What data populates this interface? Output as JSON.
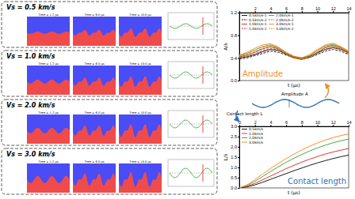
{
  "panels": [
    {
      "label": "Vs = 0.5 km/s",
      "times": [
        "Time = 1.2 μs",
        "Time = 6.0 μs",
        "Time = 10.0 μs"
      ]
    },
    {
      "label": "Vs = 1.0 km/s",
      "times": [
        "Time = 1.2 μs",
        "Time = 6.0 μs",
        "Time = 10.0 μs"
      ]
    },
    {
      "label": "Vs = 2.0 km/s",
      "times": [
        "Time = 1.2 μs",
        "Time = 6.0 μs",
        "Time = 10.0 μs"
      ]
    },
    {
      "label": "Vs = 3.0 km/s",
      "times": [
        "Time = 1.2 μs",
        "Time = 6.0 μs",
        "Time = 10.0 μs"
      ]
    }
  ],
  "annotations": {
    "amplitude": "Amplitude A",
    "contact_length": "Contact length L"
  },
  "chart_data": [
    {
      "type": "line",
      "title": "Amplitude",
      "x_label": "t (μs)",
      "y_label": "A/λ",
      "x": [
        0,
        1,
        2,
        3,
        4,
        5,
        6,
        7,
        8,
        9,
        10,
        11,
        12,
        13,
        14
      ],
      "xlim": [
        0,
        14
      ],
      "xticks": [
        2,
        4,
        6,
        8,
        10,
        12,
        14
      ],
      "ylim": [
        0,
        1.2
      ],
      "yticks": [
        {
          "value": 0,
          "label": "0.0"
        },
        0.4,
        0.8,
        1.2
      ],
      "legend": "upper left",
      "series": [
        {
          "name": "0.5km/s-1",
          "color": "#000000",
          "line_style": "solid",
          "values": [
            0.4,
            0.42,
            0.46,
            0.51,
            0.55,
            0.53,
            0.47,
            0.42,
            0.4,
            0.43,
            0.49,
            0.55,
            0.58,
            0.55,
            0.49
          ]
        },
        {
          "name": "0.5km/s-2",
          "color": "#000000",
          "line_style": "dashed",
          "values": [
            0.38,
            0.4,
            0.44,
            0.48,
            0.52,
            0.5,
            0.45,
            0.4,
            0.38,
            0.41,
            0.46,
            0.52,
            0.55,
            0.52,
            0.46
          ]
        },
        {
          "name": "1.0km/s-1",
          "color": "#e41a1c",
          "line_style": "solid",
          "values": [
            0.42,
            0.45,
            0.5,
            0.56,
            0.6,
            0.56,
            0.48,
            0.41,
            0.38,
            0.42,
            0.5,
            0.58,
            0.62,
            0.57,
            0.5
          ]
        },
        {
          "name": "1.0km/s-2",
          "color": "#e41a1c",
          "line_style": "dashed",
          "values": [
            0.4,
            0.43,
            0.47,
            0.53,
            0.57,
            0.54,
            0.46,
            0.4,
            0.37,
            0.4,
            0.48,
            0.55,
            0.59,
            0.55,
            0.48
          ]
        },
        {
          "name": "2.0km/s-1",
          "color": "#2ca02c",
          "line_style": "solid",
          "values": [
            0.44,
            0.48,
            0.54,
            0.6,
            0.63,
            0.58,
            0.49,
            0.42,
            0.39,
            0.44,
            0.53,
            0.61,
            0.64,
            0.59,
            0.51
          ]
        },
        {
          "name": "2.0km/s-2",
          "color": "#2ca02c",
          "line_style": "dashed",
          "values": [
            0.41,
            0.45,
            0.51,
            0.57,
            0.6,
            0.55,
            0.47,
            0.4,
            0.37,
            0.42,
            0.5,
            0.58,
            0.61,
            0.56,
            0.49
          ]
        },
        {
          "name": "3.0km/s-1",
          "color": "#ff7f0e",
          "line_style": "solid",
          "values": [
            0.45,
            0.5,
            0.57,
            0.63,
            0.65,
            0.59,
            0.5,
            0.43,
            0.4,
            0.46,
            0.55,
            0.63,
            0.66,
            0.6,
            0.52
          ]
        },
        {
          "name": "3.0km/s-2",
          "color": "#ff7f0e",
          "line_style": "dashed",
          "values": [
            0.43,
            0.47,
            0.54,
            0.6,
            0.62,
            0.57,
            0.48,
            0.41,
            0.38,
            0.44,
            0.53,
            0.6,
            0.63,
            0.58,
            0.5
          ]
        }
      ]
    },
    {
      "type": "line",
      "title": "Contact length",
      "x_label": "t (μs)",
      "y_label": "L/λ",
      "x": [
        0,
        1,
        2,
        3,
        4,
        5,
        6,
        7,
        8,
        9,
        10,
        11,
        12,
        13,
        14
      ],
      "xlim": [
        0,
        14
      ],
      "xticks": [
        0,
        2,
        4,
        6,
        8,
        10,
        12,
        14
      ],
      "ylim": [
        0,
        3
      ],
      "yticks": [
        {
          "value": 0,
          "label": "0.0"
        },
        0.5,
        {
          "value": 1,
          "label": "1.0"
        },
        1.5,
        {
          "value": 2,
          "label": "2.0"
        },
        2.5,
        {
          "value": 3,
          "label": "3.0"
        }
      ],
      "legend": "upper left",
      "series": [
        {
          "name": "0.5km/s",
          "color": "#000000",
          "line_style": "solid",
          "values": [
            0,
            0.05,
            0.15,
            0.28,
            0.42,
            0.56,
            0.7,
            0.84,
            0.97,
            1.1,
            1.22,
            1.33,
            1.43,
            1.52,
            1.6
          ]
        },
        {
          "name": "1.0km/s",
          "color": "#e41a1c",
          "line_style": "solid",
          "values": [
            0,
            0.08,
            0.22,
            0.4,
            0.58,
            0.76,
            0.94,
            1.1,
            1.26,
            1.4,
            1.53,
            1.65,
            1.75,
            1.84,
            1.92
          ]
        },
        {
          "name": "2.0km/s",
          "color": "#2ca02c",
          "line_style": "solid",
          "values": [
            0,
            0.12,
            0.32,
            0.56,
            0.8,
            1.03,
            1.25,
            1.45,
            1.63,
            1.8,
            1.95,
            2.08,
            2.2,
            2.3,
            2.38
          ]
        },
        {
          "name": "3.0km/s",
          "color": "#ff7f0e",
          "line_style": "solid",
          "values": [
            0,
            0.15,
            0.4,
            0.68,
            0.95,
            1.2,
            1.43,
            1.65,
            1.85,
            2.03,
            2.19,
            2.33,
            2.45,
            2.55,
            2.63
          ]
        }
      ]
    }
  ]
}
